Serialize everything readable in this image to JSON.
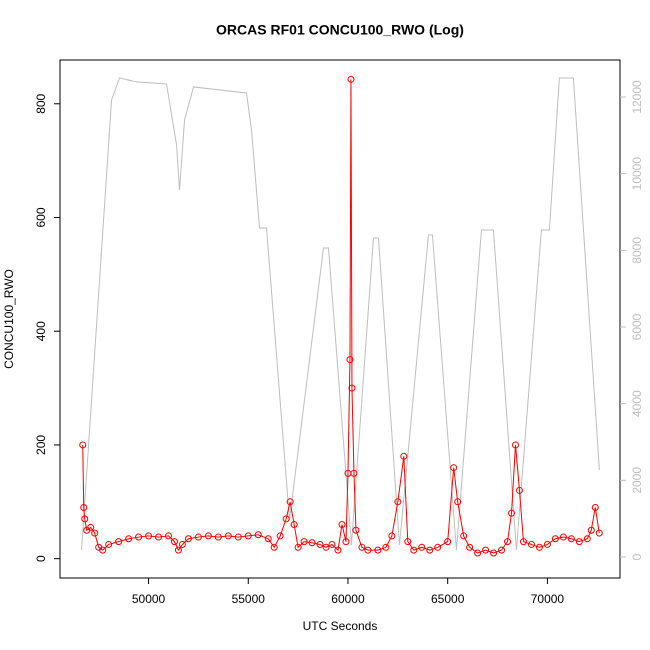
{
  "chart_data": {
    "type": "line",
    "title": "ORCAS RF01 CONCU100_RWO (Log)",
    "x_label": "UTC Seconds",
    "y_label": "CONCU100_RWO",
    "xlim": [
      45560,
      73640
    ],
    "xticks": [
      50000,
      55000,
      60000,
      65000,
      70000
    ],
    "ylim": [
      -34,
      877
    ],
    "yticks": [
      0,
      200,
      400,
      600,
      800
    ],
    "y2lim": [
      -548,
      12965
    ],
    "y2ticks": [
      0,
      2000,
      4000,
      6000,
      8000,
      10000,
      12000
    ],
    "series": [
      {
        "color": "#ff0000",
        "markers": true,
        "x": [
          46700,
          46750,
          46800,
          46900,
          47100,
          47300,
          47500,
          47700,
          48000,
          48500,
          49000,
          49500,
          50000,
          50500,
          51000,
          51300,
          51500,
          51700,
          52000,
          52500,
          53000,
          53500,
          54000,
          54500,
          55000,
          55500,
          56000,
          56300,
          56600,
          56900,
          57100,
          57300,
          57500,
          57800,
          58200,
          58600,
          58900,
          59200,
          59500,
          59700,
          59900,
          60000,
          60100,
          60150,
          60200,
          60300,
          60400,
          60700,
          61000,
          61500,
          61900,
          62200,
          62500,
          62800,
          63000,
          63300,
          63700,
          64100,
          64500,
          65000,
          65300,
          65500,
          65800,
          66100,
          66500,
          66900,
          67300,
          67700,
          68000,
          68200,
          68400,
          68600,
          68800,
          69200,
          69600,
          70000,
          70400,
          70800,
          71200,
          71600,
          72000,
          72200,
          72400,
          72600
        ],
        "values": [
          200,
          90,
          70,
          50,
          55,
          45,
          20,
          15,
          25,
          30,
          35,
          38,
          40,
          38,
          40,
          30,
          15,
          25,
          35,
          38,
          40,
          38,
          40,
          38,
          40,
          42,
          35,
          20,
          40,
          70,
          100,
          60,
          20,
          30,
          28,
          25,
          20,
          25,
          15,
          60,
          30,
          150,
          350,
          843,
          300,
          150,
          50,
          20,
          15,
          15,
          20,
          40,
          100,
          180,
          30,
          15,
          20,
          15,
          20,
          30,
          160,
          100,
          40,
          20,
          10,
          15,
          10,
          15,
          30,
          80,
          200,
          120,
          30,
          25,
          20,
          25,
          35,
          38,
          35,
          30,
          35,
          50,
          90,
          45
        ]
      },
      {
        "color": "#bebebe",
        "axis": "y2",
        "markers": false,
        "x": [
          46642,
          48145,
          48546,
          49398,
          50902,
          51404,
          51554,
          51805,
          52256,
          54912,
          55163,
          55564,
          55915,
          57068,
          58772,
          59023,
          60175,
          61278,
          61529,
          62581,
          64035,
          64236,
          65439,
          66692,
          67293,
          68446,
          69699,
          70100,
          70601,
          71303,
          72606
        ],
        "values": [
          183,
          11923,
          12497,
          12393,
          12340,
          10749,
          9575,
          11401,
          12262,
          12105,
          11140,
          8583,
          8583,
          965,
          8062,
          8062,
          313,
          8322,
          8322,
          313,
          8401,
          8401,
          183,
          8531,
          8531,
          183,
          8531,
          8531,
          12497,
          12497,
          2270
        ]
      }
    ]
  }
}
